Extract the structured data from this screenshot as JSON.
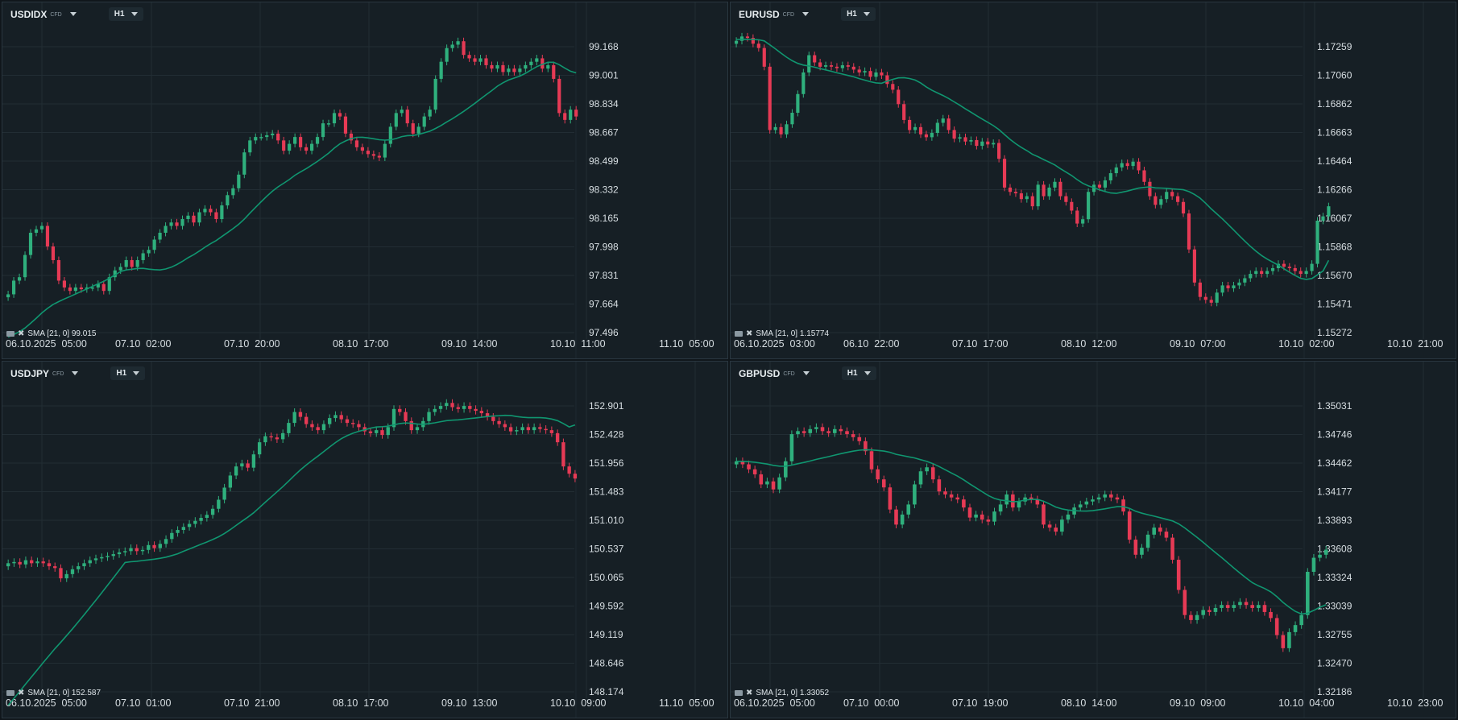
{
  "colors": {
    "background": "#161f25",
    "grid": "#222d34",
    "up": "#2fb07d",
    "down": "#e63a55",
    "sma": "#109670",
    "text": "#d7dee2"
  },
  "icons": [
    "indicator-icon",
    "close-icon",
    "dropdown-caret-icon"
  ],
  "chart_data": [
    {
      "type": "candlestick",
      "symbol": "USDIDX",
      "badge": "CFD",
      "timeframe": "H1",
      "indicator": "SMA [21, 0] 99.015",
      "x_labels": [
        "06.10.2025  05:00",
        "07.10  02:00",
        "07.10  20:00",
        "08.10  17:00",
        "09.10  14:00",
        "10.10  11:00",
        "11.10  05:00"
      ],
      "y_ticks": [
        "99.168",
        "99.001",
        "98.834",
        "98.667",
        "98.499",
        "98.332",
        "98.165",
        "97.998",
        "97.831",
        "97.664",
        "97.496"
      ],
      "ylim": [
        97.496,
        99.23
      ],
      "closes": [
        97.72,
        97.8,
        97.82,
        97.95,
        98.08,
        98.1,
        98.12,
        98.0,
        97.92,
        97.8,
        97.76,
        97.74,
        97.76,
        97.75,
        97.76,
        97.76,
        97.78,
        97.74,
        97.82,
        97.86,
        97.88,
        97.92,
        97.88,
        97.92,
        97.96,
        97.98,
        98.04,
        98.08,
        98.12,
        98.14,
        98.12,
        98.16,
        98.18,
        98.14,
        98.2,
        98.22,
        98.2,
        98.16,
        98.24,
        98.3,
        98.34,
        98.42,
        98.55,
        98.62,
        98.64,
        98.64,
        98.65,
        98.66,
        98.62,
        98.56,
        98.6,
        98.64,
        98.58,
        98.56,
        98.6,
        98.64,
        98.72,
        98.72,
        98.78,
        98.76,
        98.66,
        98.62,
        98.58,
        98.56,
        98.54,
        98.53,
        98.52,
        98.6,
        98.7,
        98.78,
        98.8,
        98.72,
        98.66,
        98.7,
        98.76,
        98.8,
        98.98,
        99.08,
        99.16,
        99.18,
        99.2,
        99.12,
        99.1,
        99.08,
        99.1,
        99.06,
        99.04,
        99.06,
        99.02,
        99.04,
        99.02,
        99.04,
        99.06,
        99.08,
        99.1,
        99.04,
        99.06,
        98.98,
        98.78,
        98.74,
        98.8,
        98.76
      ],
      "sma_start": 97.47,
      "sma_end": 99.015
    },
    {
      "type": "candlestick",
      "symbol": "EURUSD",
      "badge": "CFD",
      "timeframe": "H1",
      "indicator": "SMA [21, 0] 1.15774",
      "x_labels": [
        "06.10.2025  03:00",
        "06.10  22:00",
        "07.10  17:00",
        "08.10  12:00",
        "09.10  07:00",
        "10.10  02:00",
        "10.10  21:00"
      ],
      "y_ticks": [
        "1.17259",
        "1.17060",
        "1.16862",
        "1.16663",
        "1.16464",
        "1.16266",
        "1.16067",
        "1.15868",
        "1.15670",
        "1.15471",
        "1.15272"
      ],
      "ylim": [
        1.15272,
        1.17345
      ],
      "closes": [
        1.173,
        1.1733,
        1.1732,
        1.1728,
        1.1725,
        1.1712,
        1.1668,
        1.167,
        1.1665,
        1.1672,
        1.168,
        1.1693,
        1.1708,
        1.172,
        1.1715,
        1.1712,
        1.1713,
        1.1712,
        1.1711,
        1.1713,
        1.1712,
        1.171,
        1.1708,
        1.1709,
        1.1705,
        1.1708,
        1.1706,
        1.17,
        1.1696,
        1.1686,
        1.1675,
        1.1668,
        1.167,
        1.1665,
        1.1663,
        1.1666,
        1.1673,
        1.1676,
        1.1668,
        1.1662,
        1.1663,
        1.166,
        1.1661,
        1.1657,
        1.166,
        1.1658,
        1.1659,
        1.1648,
        1.1628,
        1.1625,
        1.1624,
        1.162,
        1.1622,
        1.1615,
        1.163,
        1.1622,
        1.1628,
        1.1632,
        1.1622,
        1.1618,
        1.1612,
        1.1603,
        1.1606,
        1.1625,
        1.163,
        1.1628,
        1.1633,
        1.1638,
        1.1642,
        1.1645,
        1.1643,
        1.1646,
        1.164,
        1.1632,
        1.1622,
        1.1616,
        1.162,
        1.1625,
        1.1622,
        1.1618,
        1.161,
        1.1585,
        1.1562,
        1.1552,
        1.155,
        1.1548,
        1.1555,
        1.156,
        1.1558,
        1.156,
        1.1562,
        1.1565,
        1.1568,
        1.157,
        1.1568,
        1.157,
        1.1572,
        1.1575,
        1.1573,
        1.1572,
        1.157,
        1.1568,
        1.157,
        1.1575,
        1.1605,
        1.1608,
        1.1615
      ],
      "sma_start": 1.1731,
      "sma_end": 1.15774
    },
    {
      "type": "candlestick",
      "symbol": "USDJPY",
      "badge": "CFD",
      "timeframe": "H1",
      "indicator": "SMA [21, 0] 152.587",
      "x_labels": [
        "06.10.2025  05:00",
        "07.10  01:00",
        "07.10  21:00",
        "08.10  17:00",
        "09.10  13:00",
        "10.10  09:00",
        "11.10  05:00"
      ],
      "y_ticks": [
        "152.901",
        "152.428",
        "151.956",
        "151.483",
        "151.010",
        "150.537",
        "150.065",
        "149.592",
        "149.119",
        "148.646",
        "148.174"
      ],
      "ylim": [
        148.174,
        153.25
      ],
      "closes": [
        150.3,
        150.32,
        150.28,
        150.35,
        150.3,
        150.33,
        150.3,
        150.25,
        150.22,
        150.05,
        150.12,
        150.2,
        150.25,
        150.3,
        150.35,
        150.38,
        150.4,
        150.42,
        150.45,
        150.48,
        150.5,
        150.55,
        150.5,
        150.52,
        150.6,
        150.55,
        150.62,
        150.7,
        150.8,
        150.85,
        150.9,
        150.95,
        151.0,
        151.05,
        151.1,
        151.2,
        151.35,
        151.55,
        151.75,
        151.9,
        151.95,
        151.88,
        152.1,
        152.3,
        152.4,
        152.38,
        152.35,
        152.45,
        152.62,
        152.8,
        152.72,
        152.6,
        152.55,
        152.5,
        152.6,
        152.7,
        152.75,
        152.68,
        152.62,
        152.6,
        152.55,
        152.48,
        152.45,
        152.5,
        152.42,
        152.55,
        152.85,
        152.8,
        152.65,
        152.5,
        152.55,
        152.65,
        152.8,
        152.85,
        152.9,
        152.95,
        152.88,
        152.85,
        152.9,
        152.85,
        152.82,
        152.78,
        152.72,
        152.65,
        152.6,
        152.55,
        152.48,
        152.5,
        152.55,
        152.5,
        152.55,
        152.52,
        152.5,
        152.45,
        152.3,
        151.9,
        151.78,
        151.7
      ],
      "sma_start": 147.95,
      "sma_end": 152.587
    },
    {
      "type": "candlestick",
      "symbol": "GBPUSD",
      "badge": "CFD",
      "timeframe": "H1",
      "indicator": "SMA [21, 0] 1.33052",
      "x_labels": [
        "06.10.2025  05:00",
        "07.10  00:00",
        "07.10  19:00",
        "08.10  14:00",
        "09.10  09:00",
        "10.10  04:00",
        "10.10  23:00"
      ],
      "y_ticks": [
        "1.35031",
        "1.34746",
        "1.34462",
        "1.34177",
        "1.33893",
        "1.33608",
        "1.33324",
        "1.33039",
        "1.32755",
        "1.32470",
        "1.32186"
      ],
      "ylim": [
        1.32186,
        1.3528
      ],
      "closes": [
        1.3448,
        1.3445,
        1.344,
        1.3435,
        1.3425,
        1.3428,
        1.342,
        1.3432,
        1.3448,
        1.3475,
        1.3478,
        1.3476,
        1.348,
        1.3482,
        1.3478,
        1.3476,
        1.348,
        1.3478,
        1.3475,
        1.3472,
        1.3468,
        1.3458,
        1.344,
        1.343,
        1.3422,
        1.34,
        1.3385,
        1.3395,
        1.3405,
        1.3425,
        1.3438,
        1.3442,
        1.343,
        1.3418,
        1.3415,
        1.3412,
        1.341,
        1.3402,
        1.3392,
        1.3395,
        1.339,
        1.3388,
        1.3398,
        1.3405,
        1.3415,
        1.3402,
        1.3408,
        1.3412,
        1.341,
        1.3405,
        1.3385,
        1.3382,
        1.3378,
        1.339,
        1.3395,
        1.3402,
        1.3405,
        1.3408,
        1.341,
        1.3412,
        1.3415,
        1.3412,
        1.341,
        1.3398,
        1.337,
        1.3355,
        1.3362,
        1.3375,
        1.3382,
        1.3378,
        1.3372,
        1.335,
        1.332,
        1.3295,
        1.329,
        1.3295,
        1.33,
        1.3298,
        1.3302,
        1.3305,
        1.3302,
        1.3305,
        1.3308,
        1.3305,
        1.3302,
        1.3305,
        1.3298,
        1.3292,
        1.3275,
        1.3262,
        1.3278,
        1.3285,
        1.3295,
        1.3338,
        1.3352,
        1.3355,
        1.336
      ],
      "sma_start": 1.3448,
      "sma_end": 1.33052
    }
  ]
}
